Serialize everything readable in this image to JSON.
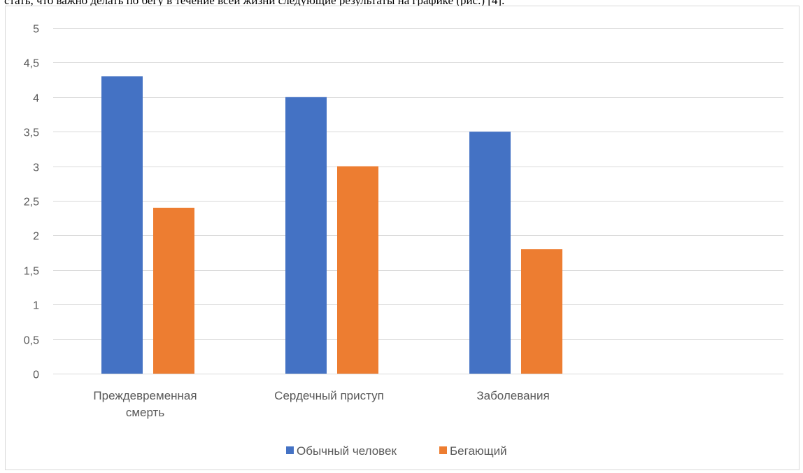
{
  "document": {
    "text_line": "стать, что важно делать по бегу в течение всей жизни следующие результаты на графике (рис.) [4]."
  },
  "chart_data": {
    "type": "bar",
    "title": "",
    "xlabel": "",
    "ylabel": "",
    "categories": [
      [
        "Преждевременная",
        "смерть"
      ],
      [
        "Сердечный приступ"
      ],
      [
        "Заболевания"
      ]
    ],
    "series": [
      {
        "name": "Обычный человек",
        "color": "#4472C4",
        "values": [
          4.3,
          4.0,
          3.5
        ]
      },
      {
        "name": "Бегающий",
        "color": "#ED7D31",
        "values": [
          2.4,
          3.0,
          1.8
        ]
      }
    ],
    "ylim": [
      0,
      5
    ],
    "yticks": [
      "0",
      "0,5",
      "1",
      "1,5",
      "2",
      "2,5",
      "3",
      "3,5",
      "4",
      "4,5",
      "5"
    ],
    "grid": true,
    "legend_position": "bottom",
    "gridline_color": "#d9d9d9"
  }
}
